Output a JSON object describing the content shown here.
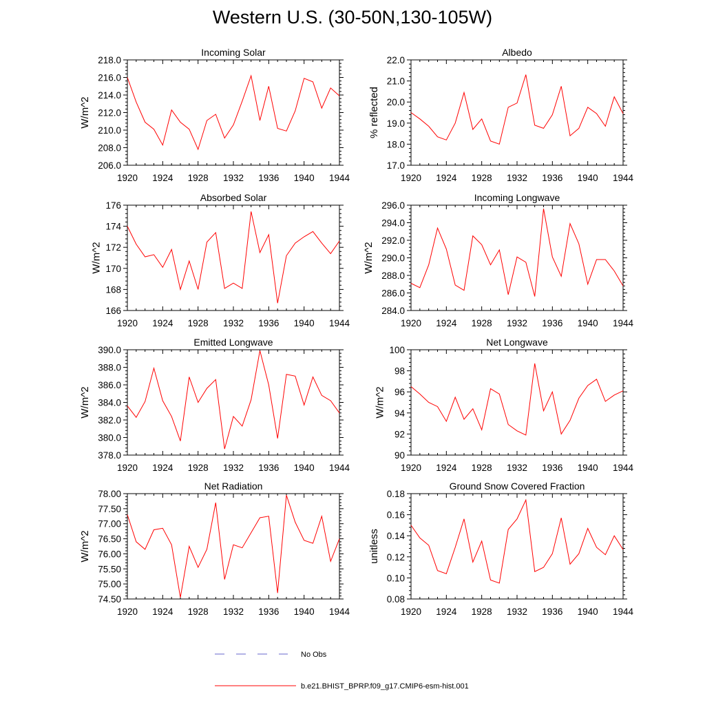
{
  "title": "Western U.S. (30-50N,130-105W)",
  "legend": [
    {
      "label": "No Obs",
      "color": "#6666cc",
      "style": "dashed"
    },
    {
      "label": "b.e21.BHIST_BPRP.f09_g17.CMIP6-esm-hist.001",
      "color": "#ff0000",
      "style": "solid"
    }
  ],
  "chart_data": [
    {
      "type": "line",
      "title": "Incoming Solar",
      "ylabel": "W/m^2",
      "xlim": [
        1920,
        1944
      ],
      "ylim": [
        206,
        218
      ],
      "ytick_values": [
        206,
        208,
        210,
        212,
        214,
        216,
        218
      ],
      "ytick_labels": [
        "206.0",
        "208.0",
        "210.0",
        "212.0",
        "214.0",
        "216.0",
        "218.0"
      ],
      "xtick_values": [
        1920,
        1924,
        1928,
        1932,
        1936,
        1940,
        1944
      ],
      "xtick_labels": [
        "1920",
        "1924",
        "1928",
        "1932",
        "1936",
        "1940",
        "1944"
      ],
      "series": [
        {
          "name": "b.e21.BHIST_BPRP.f09_g17.CMIP6-esm-hist.001",
          "color": "#ff0000",
          "x": [
            1920,
            1921,
            1922,
            1923,
            1924,
            1925,
            1926,
            1927,
            1928,
            1929,
            1930,
            1931,
            1932,
            1933,
            1934,
            1935,
            1936,
            1937,
            1938,
            1939,
            1940,
            1941,
            1942,
            1943,
            1944
          ],
          "values": [
            216.0,
            213.2,
            210.9,
            210.1,
            208.3,
            212.3,
            210.9,
            210.1,
            207.8,
            211.1,
            211.8,
            209.1,
            210.6,
            213.3,
            216.2,
            211.1,
            215.0,
            210.2,
            209.9,
            212.2,
            215.9,
            215.5,
            212.5,
            214.8,
            213.9
          ]
        }
      ]
    },
    {
      "type": "line",
      "title": "Albedo",
      "ylabel": "% reflected",
      "xlim": [
        1920,
        1944
      ],
      "ylim": [
        17,
        22
      ],
      "ytick_values": [
        17,
        18,
        19,
        20,
        21,
        22
      ],
      "ytick_labels": [
        "17.0",
        "18.0",
        "19.0",
        "20.0",
        "21.0",
        "22.0"
      ],
      "xtick_values": [
        1920,
        1924,
        1928,
        1932,
        1936,
        1940,
        1944
      ],
      "xtick_labels": [
        "1920",
        "1924",
        "1928",
        "1932",
        "1936",
        "1940",
        "1944"
      ],
      "series": [
        {
          "name": "b.e21.BHIST_BPRP.f09_g17.CMIP6-esm-hist.001",
          "color": "#ff0000",
          "x": [
            1920,
            1921,
            1922,
            1923,
            1924,
            1925,
            1926,
            1927,
            1928,
            1929,
            1930,
            1931,
            1932,
            1933,
            1934,
            1935,
            1936,
            1937,
            1938,
            1939,
            1940,
            1941,
            1942,
            1943,
            1944
          ],
          "values": [
            19.5,
            19.2,
            18.85,
            18.35,
            18.2,
            19.0,
            20.45,
            18.7,
            19.2,
            18.15,
            18.0,
            19.75,
            19.95,
            21.3,
            18.9,
            18.75,
            19.4,
            20.75,
            18.4,
            18.75,
            19.75,
            19.45,
            18.85,
            20.25,
            19.45
          ]
        }
      ]
    },
    {
      "type": "line",
      "title": "Absorbed Solar",
      "ylabel": "W/m^2",
      "xlim": [
        1920,
        1944
      ],
      "ylim": [
        166,
        176
      ],
      "ytick_values": [
        166,
        168,
        170,
        172,
        174,
        176
      ],
      "ytick_labels": [
        "166",
        "168",
        "170",
        "172",
        "174",
        "176"
      ],
      "xtick_values": [
        1920,
        1924,
        1928,
        1932,
        1936,
        1940,
        1944
      ],
      "xtick_labels": [
        "1920",
        "1924",
        "1928",
        "1932",
        "1936",
        "1940",
        "1944"
      ],
      "series": [
        {
          "name": "b.e21.BHIST_BPRP.f09_g17.CMIP6-esm-hist.001",
          "color": "#ff0000",
          "x": [
            1920,
            1921,
            1922,
            1923,
            1924,
            1925,
            1926,
            1927,
            1928,
            1929,
            1930,
            1931,
            1932,
            1933,
            1934,
            1935,
            1936,
            1937,
            1938,
            1939,
            1940,
            1941,
            1942,
            1943,
            1944
          ],
          "values": [
            174.0,
            172.3,
            171.1,
            171.3,
            170.1,
            171.8,
            168.0,
            170.7,
            168.0,
            172.5,
            173.4,
            168.1,
            168.6,
            168.1,
            175.4,
            171.5,
            173.2,
            166.7,
            171.2,
            172.4,
            173.0,
            173.5,
            172.4,
            171.4,
            172.6
          ]
        }
      ]
    },
    {
      "type": "line",
      "title": "Incoming Longwave",
      "ylabel": "W/m^2",
      "xlim": [
        1920,
        1944
      ],
      "ylim": [
        284,
        296
      ],
      "ytick_values": [
        284,
        286,
        288,
        290,
        292,
        294,
        296
      ],
      "ytick_labels": [
        "284.0",
        "286.0",
        "288.0",
        "290.0",
        "292.0",
        "294.0",
        "296.0"
      ],
      "xtick_values": [
        1920,
        1924,
        1928,
        1932,
        1936,
        1940,
        1944
      ],
      "xtick_labels": [
        "1920",
        "1924",
        "1928",
        "1932",
        "1936",
        "1940",
        "1944"
      ],
      "series": [
        {
          "name": "b.e21.BHIST_BPRP.f09_g17.CMIP6-esm-hist.001",
          "color": "#ff0000",
          "x": [
            1920,
            1921,
            1922,
            1923,
            1924,
            1925,
            1926,
            1927,
            1928,
            1929,
            1930,
            1931,
            1932,
            1933,
            1934,
            1935,
            1936,
            1937,
            1938,
            1939,
            1940,
            1941,
            1942,
            1943,
            1944
          ],
          "values": [
            287.1,
            286.6,
            289.2,
            293.4,
            291.0,
            286.9,
            286.3,
            292.5,
            291.5,
            289.2,
            290.9,
            285.8,
            290.1,
            289.5,
            285.6,
            295.6,
            290.1,
            287.9,
            293.9,
            291.6,
            287.0,
            289.8,
            289.8,
            288.5,
            286.8
          ]
        }
      ]
    },
    {
      "type": "line",
      "title": "Emitted Longwave",
      "ylabel": "W/m^2",
      "xlim": [
        1920,
        1944
      ],
      "ylim": [
        378,
        390
      ],
      "ytick_values": [
        378,
        380,
        382,
        384,
        386,
        388,
        390
      ],
      "ytick_labels": [
        "378.0",
        "380.0",
        "382.0",
        "384.0",
        "386.0",
        "388.0",
        "390.0"
      ],
      "xtick_values": [
        1920,
        1924,
        1928,
        1932,
        1936,
        1940,
        1944
      ],
      "xtick_labels": [
        "1920",
        "1924",
        "1928",
        "1932",
        "1936",
        "1940",
        "1944"
      ],
      "series": [
        {
          "name": "b.e21.BHIST_BPRP.f09_g17.CMIP6-esm-hist.001",
          "color": "#ff0000",
          "x": [
            1920,
            1921,
            1922,
            1923,
            1924,
            1925,
            1926,
            1927,
            1928,
            1929,
            1930,
            1931,
            1932,
            1933,
            1934,
            1935,
            1936,
            1937,
            1938,
            1939,
            1940,
            1941,
            1942,
            1943,
            1944
          ],
          "values": [
            383.6,
            382.3,
            384.1,
            387.9,
            384.2,
            382.4,
            379.6,
            386.9,
            384.0,
            385.6,
            386.6,
            378.7,
            382.4,
            381.3,
            384.3,
            389.9,
            386.0,
            379.9,
            387.2,
            387.0,
            383.7,
            386.9,
            384.8,
            384.2,
            382.8
          ]
        }
      ]
    },
    {
      "type": "line",
      "title": "Net Longwave",
      "ylabel": "W/m^2",
      "xlim": [
        1920,
        1944
      ],
      "ylim": [
        90,
        100
      ],
      "ytick_values": [
        90,
        92,
        94,
        96,
        98,
        100
      ],
      "ytick_labels": [
        "90",
        "92",
        "94",
        "96",
        "98",
        "100"
      ],
      "xtick_values": [
        1920,
        1924,
        1928,
        1932,
        1936,
        1940,
        1944
      ],
      "xtick_labels": [
        "1920",
        "1924",
        "1928",
        "1932",
        "1936",
        "1940",
        "1944"
      ],
      "series": [
        {
          "name": "b.e21.BHIST_BPRP.f09_g17.CMIP6-esm-hist.001",
          "color": "#ff0000",
          "x": [
            1920,
            1921,
            1922,
            1923,
            1924,
            1925,
            1926,
            1927,
            1928,
            1929,
            1930,
            1931,
            1932,
            1933,
            1934,
            1935,
            1936,
            1937,
            1938,
            1939,
            1940,
            1941,
            1942,
            1943,
            1944
          ],
          "values": [
            96.5,
            95.8,
            95.0,
            94.6,
            93.2,
            95.5,
            93.4,
            94.4,
            92.4,
            96.3,
            95.8,
            92.9,
            92.3,
            91.9,
            98.7,
            94.2,
            96.0,
            92.0,
            93.3,
            95.4,
            96.6,
            97.2,
            95.1,
            95.7,
            96.1
          ]
        }
      ]
    },
    {
      "type": "line",
      "title": "Net Radiation",
      "ylabel": "W/m^2",
      "xlim": [
        1920,
        1944
      ],
      "ylim": [
        74.5,
        78
      ],
      "ytick_values": [
        74.5,
        75,
        75.5,
        76,
        76.5,
        77,
        77.5,
        78
      ],
      "ytick_labels": [
        "74.50",
        "75.00",
        "75.50",
        "76.00",
        "76.50",
        "77.00",
        "77.50",
        "78.00"
      ],
      "xtick_values": [
        1920,
        1924,
        1928,
        1932,
        1936,
        1940,
        1944
      ],
      "xtick_labels": [
        "1920",
        "1924",
        "1928",
        "1932",
        "1936",
        "1940",
        "1944"
      ],
      "series": [
        {
          "name": "b.e21.BHIST_BPRP.f09_g17.CMIP6-esm-hist.001",
          "color": "#ff0000",
          "x": [
            1920,
            1921,
            1922,
            1923,
            1924,
            1925,
            1926,
            1927,
            1928,
            1929,
            1930,
            1931,
            1932,
            1933,
            1934,
            1935,
            1936,
            1937,
            1938,
            1939,
            1940,
            1941,
            1942,
            1943,
            1944
          ],
          "values": [
            77.3,
            76.4,
            76.15,
            76.8,
            76.85,
            76.3,
            74.55,
            76.25,
            75.55,
            76.15,
            77.7,
            75.15,
            76.3,
            76.2,
            76.7,
            77.2,
            77.25,
            74.7,
            77.95,
            77.05,
            76.45,
            76.35,
            77.25,
            75.75,
            76.5
          ]
        }
      ]
    },
    {
      "type": "line",
      "title": "Ground Snow Covered Fraction",
      "ylabel": "unitless",
      "xlim": [
        1920,
        1944
      ],
      "ylim": [
        0.08,
        0.18
      ],
      "ytick_values": [
        0.08,
        0.1,
        0.12,
        0.14,
        0.16,
        0.18
      ],
      "ytick_labels": [
        "0.08",
        "0.10",
        "0.12",
        "0.14",
        "0.16",
        "0.18"
      ],
      "xtick_values": [
        1920,
        1924,
        1928,
        1932,
        1936,
        1940,
        1944
      ],
      "xtick_labels": [
        "1920",
        "1924",
        "1928",
        "1932",
        "1936",
        "1940",
        "1944"
      ],
      "series": [
        {
          "name": "b.e21.BHIST_BPRP.f09_g17.CMIP6-esm-hist.001",
          "color": "#ff0000",
          "x": [
            1920,
            1921,
            1922,
            1923,
            1924,
            1925,
            1926,
            1927,
            1928,
            1929,
            1930,
            1931,
            1932,
            1933,
            1934,
            1935,
            1936,
            1937,
            1938,
            1939,
            1940,
            1941,
            1942,
            1943,
            1944
          ],
          "values": [
            0.15,
            0.138,
            0.131,
            0.107,
            0.104,
            0.129,
            0.156,
            0.115,
            0.135,
            0.098,
            0.095,
            0.146,
            0.156,
            0.174,
            0.106,
            0.11,
            0.123,
            0.157,
            0.113,
            0.123,
            0.147,
            0.129,
            0.122,
            0.14,
            0.127
          ]
        }
      ]
    }
  ]
}
